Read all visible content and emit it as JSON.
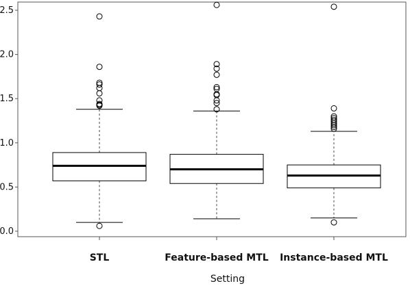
{
  "chart_data": {
    "type": "boxplot",
    "title": "",
    "xlabel": "Setting",
    "ylabel": "",
    "ylim": [
      -0.05,
      2.6
    ],
    "yticks": [
      "0.0",
      "0.5",
      "1.0",
      "1.5",
      "2.0",
      "2.5"
    ],
    "ytick_values": [
      0.0,
      0.5,
      1.0,
      1.5,
      2.0,
      2.5
    ],
    "grid": false,
    "legend": "none",
    "categories": [
      "STL",
      "Feature-based MTL",
      "Instance-based MTL"
    ],
    "boxes": [
      {
        "name": "STL",
        "whisker_low": 0.1,
        "q1": 0.57,
        "median": 0.74,
        "q3": 0.89,
        "whisker_high": 1.38,
        "outliers": [
          0.06,
          1.42,
          1.43,
          1.44,
          1.48,
          1.56,
          1.62,
          1.66,
          1.68,
          1.86,
          2.43
        ]
      },
      {
        "name": "Feature-based MTL",
        "whisker_low": 0.14,
        "q1": 0.54,
        "median": 0.7,
        "q3": 0.87,
        "whisker_high": 1.36,
        "outliers": [
          1.38,
          1.45,
          1.48,
          1.54,
          1.55,
          1.61,
          1.63,
          1.77,
          1.84,
          1.89,
          2.56
        ]
      },
      {
        "name": "Instance-based MTL",
        "whisker_low": 0.15,
        "q1": 0.49,
        "median": 0.63,
        "q3": 0.75,
        "whisker_high": 1.13,
        "outliers": [
          0.1,
          1.16,
          1.18,
          1.2,
          1.22,
          1.24,
          1.26,
          1.28,
          1.3,
          1.39,
          2.54
        ]
      }
    ],
    "colors": {
      "box_fill": "#ffffff",
      "line": "#000000",
      "whisker": "#444444",
      "frame": "#555555"
    }
  }
}
